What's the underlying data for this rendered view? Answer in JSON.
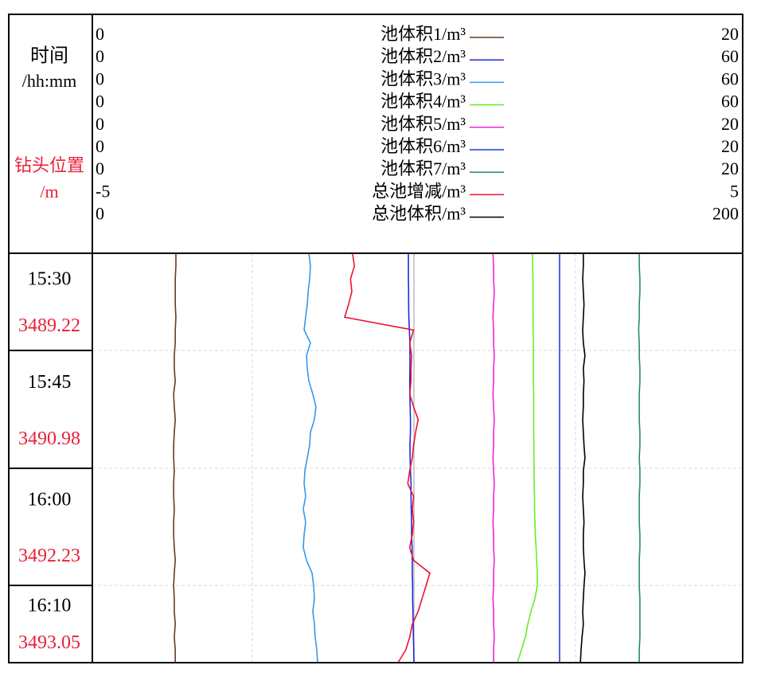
{
  "header": {
    "time_label": "时间",
    "time_unit": "/hh:mm",
    "depth_label": "钻头位置",
    "depth_unit": "/m"
  },
  "rows": [
    {
      "time": "15:30",
      "depth": "3489.22"
    },
    {
      "time": "15:45",
      "depth": "3490.98"
    },
    {
      "time": "16:00",
      "depth": "3492.23"
    },
    {
      "time": "16:10",
      "depth": "3493.05"
    }
  ],
  "chart_data": {
    "type": "line",
    "orientation": "vertical",
    "series": [
      {
        "name": "池体积1/m³",
        "color": "#6b3a1e",
        "xlim": [
          0,
          20
        ],
        "values": [
          2.57,
          2.57,
          2.55,
          2.55,
          2.55,
          2.57,
          2.55,
          2.55,
          2.52,
          2.52,
          2.55,
          2.5,
          2.52,
          2.55,
          2.52,
          2.5,
          2.5,
          2.52,
          2.5,
          2.5,
          2.52,
          2.5,
          2.5,
          2.52,
          2.55,
          2.52,
          2.5,
          2.52,
          2.52,
          2.55,
          2.52,
          2.55,
          2.55
        ]
      },
      {
        "name": "池体积2/m³",
        "color": "#2828d8",
        "xlim": [
          0,
          60
        ],
        "values": [
          29.16,
          29.16,
          29.16,
          29.18,
          29.18,
          29.2,
          29.25,
          29.3,
          29.3,
          29.3,
          29.28,
          29.3,
          29.32,
          29.35,
          29.35,
          29.3,
          29.32,
          29.35,
          29.4,
          29.4,
          29.42,
          29.45,
          29.45,
          29.5,
          29.52,
          29.52,
          29.55,
          29.55,
          29.58,
          29.6,
          29.62,
          29.65,
          29.67
        ]
      },
      {
        "name": "池体积3/m³",
        "color": "#3399ee",
        "xlim": [
          0,
          60
        ],
        "values": [
          19.98,
          20.12,
          20.05,
          19.91,
          19.83,
          19.68,
          19.54,
          20.12,
          19.76,
          19.83,
          19.98,
          20.34,
          20.63,
          20.49,
          20.12,
          20.05,
          19.83,
          19.61,
          19.54,
          19.68,
          19.46,
          19.68,
          19.54,
          19.46,
          19.76,
          20.27,
          20.42,
          20.49,
          20.34,
          20.49,
          20.56,
          20.71,
          20.78
        ]
      },
      {
        "name": "池体积4/m³",
        "color": "#66ee22",
        "xlim": [
          0,
          60
        ],
        "values": [
          40.62,
          40.62,
          40.65,
          40.65,
          40.65,
          40.67,
          40.67,
          40.69,
          40.69,
          40.69,
          40.69,
          40.72,
          40.72,
          40.72,
          40.72,
          40.74,
          40.74,
          40.76,
          40.76,
          40.8,
          40.8,
          40.83,
          40.87,
          40.94,
          41.0,
          41.05,
          41.05,
          40.83,
          40.47,
          40.17,
          39.95,
          39.58,
          39.22
        ]
      },
      {
        "name": "池体积5/m³",
        "color": "#ee22dd",
        "xlim": [
          0,
          20
        ],
        "values": [
          12.32,
          12.34,
          12.34,
          12.36,
          12.34,
          12.32,
          12.34,
          12.34,
          12.36,
          12.34,
          12.34,
          12.32,
          12.34,
          12.36,
          12.34,
          12.34,
          12.32,
          12.34,
          12.36,
          12.34,
          12.34,
          12.32,
          12.34,
          12.34,
          12.36,
          12.34,
          12.34,
          12.32,
          12.34,
          12.34,
          12.36,
          12.34,
          12.34
        ]
      },
      {
        "name": "池体积6/m³",
        "color": "#1a3fe0",
        "xlim": [
          0,
          20
        ],
        "values": [
          14.37,
          14.37,
          14.37,
          14.37,
          14.37,
          14.37,
          14.37,
          14.37,
          14.37,
          14.37,
          14.37,
          14.37,
          14.37,
          14.37,
          14.37,
          14.37,
          14.37,
          14.37,
          14.37,
          14.37,
          14.37,
          14.37,
          14.37,
          14.37,
          14.37,
          14.37,
          14.37,
          14.37,
          14.37,
          14.37,
          14.37,
          14.37,
          14.37
        ]
      },
      {
        "name": "池体积7/m³",
        "color": "#2a8a6a",
        "xlim": [
          0,
          20
        ],
        "values": [
          16.82,
          16.82,
          16.84,
          16.84,
          16.82,
          16.82,
          16.8,
          16.82,
          16.82,
          16.84,
          16.84,
          16.82,
          16.82,
          16.82,
          16.84,
          16.84,
          16.82,
          16.84,
          16.84,
          16.82,
          16.82,
          16.82,
          16.84,
          16.84,
          16.82,
          16.82,
          16.82,
          16.84,
          16.84,
          16.84,
          16.84,
          16.82,
          16.82
        ]
      },
      {
        "name": "总池增减/m³",
        "color": "#ee1133",
        "xlim": [
          -5,
          5
        ],
        "values": [
          -1.0,
          -0.97,
          -1.03,
          -1.01,
          -1.06,
          -1.12,
          -0.06,
          -0.12,
          -0.09,
          -0.1,
          -0.1,
          -0.12,
          -0.06,
          0.01,
          -0.03,
          -0.06,
          -0.08,
          -0.12,
          -0.15,
          -0.06,
          -0.08,
          -0.06,
          -0.08,
          -0.12,
          -0.06,
          0.19,
          0.13,
          0.07,
          0.01,
          -0.08,
          -0.12,
          -0.18,
          -0.3
        ]
      },
      {
        "name": "总池体积/m³",
        "color": "#000000",
        "xlim": [
          0,
          200
        ],
        "values": [
          151.0,
          151.0,
          150.8,
          151.0,
          151.2,
          151.0,
          150.8,
          151.0,
          151.5,
          151.0,
          151.2,
          151.0,
          151.0,
          150.8,
          151.0,
          151.2,
          151.5,
          151.0,
          151.0,
          150.8,
          151.0,
          151.2,
          151.0,
          151.0,
          151.2,
          151.5,
          151.2,
          151.0,
          150.8,
          151.0,
          150.6,
          150.3,
          150.1
        ]
      }
    ]
  }
}
